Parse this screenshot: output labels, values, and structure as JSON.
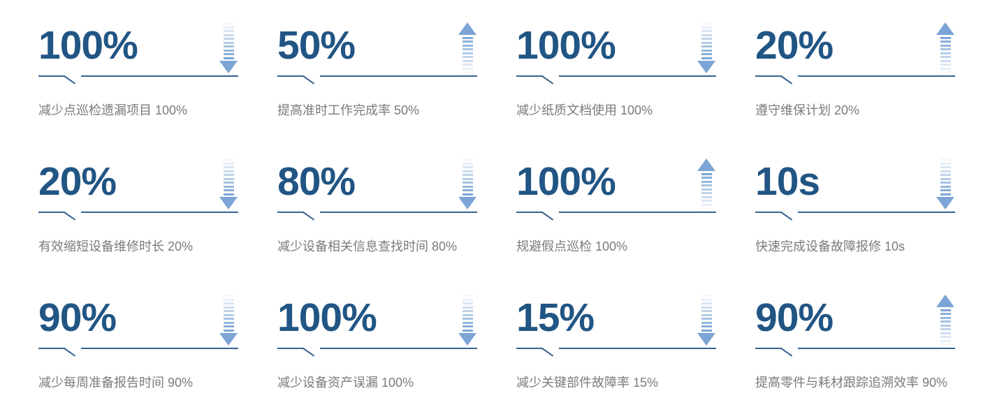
{
  "colors": {
    "number": "#215584",
    "rule": "#36648f",
    "caption": "#7b7b7b",
    "arrow": "#7ca5d5",
    "background": "#ffffff"
  },
  "chart_data": {
    "type": "table",
    "description": "KPI benefits infographic: 4-column by 3-row grid of statistics, each with a large value, a fading dashed trend arrow (up or down), an underline with notch, and a caption",
    "columns": [
      "value",
      "trend",
      "label"
    ],
    "items": [
      {
        "value": "100%",
        "trend": "down",
        "label": "减少点巡检遗漏项目 100%"
      },
      {
        "value": "50%",
        "trend": "up",
        "label": "提高准时工作完成率 50%"
      },
      {
        "value": "100%",
        "trend": "down",
        "label": "减少纸质文档使用 100%"
      },
      {
        "value": "20%",
        "trend": "up",
        "label": "遵守维保计划 20%"
      },
      {
        "value": "20%",
        "trend": "down",
        "label": "有效缩短设备维修时长 20%"
      },
      {
        "value": "80%",
        "trend": "down",
        "label": "减少设备相关信息查找时间 80%"
      },
      {
        "value": "100%",
        "trend": "up",
        "label": "规避假点巡检 100%"
      },
      {
        "value": "10s",
        "trend": "down",
        "label": "快速完成设备故障报修 10s"
      },
      {
        "value": "90%",
        "trend": "down",
        "label": "减少每周准备报告时间 90%"
      },
      {
        "value": "100%",
        "trend": "down",
        "label": "减少设备资产误漏 100%"
      },
      {
        "value": "15%",
        "trend": "down",
        "label": "减少关键部件故障率 15%"
      },
      {
        "value": "90%",
        "trend": "up",
        "label": "提高零件与耗材跟踪追溯效率 90%"
      }
    ]
  }
}
